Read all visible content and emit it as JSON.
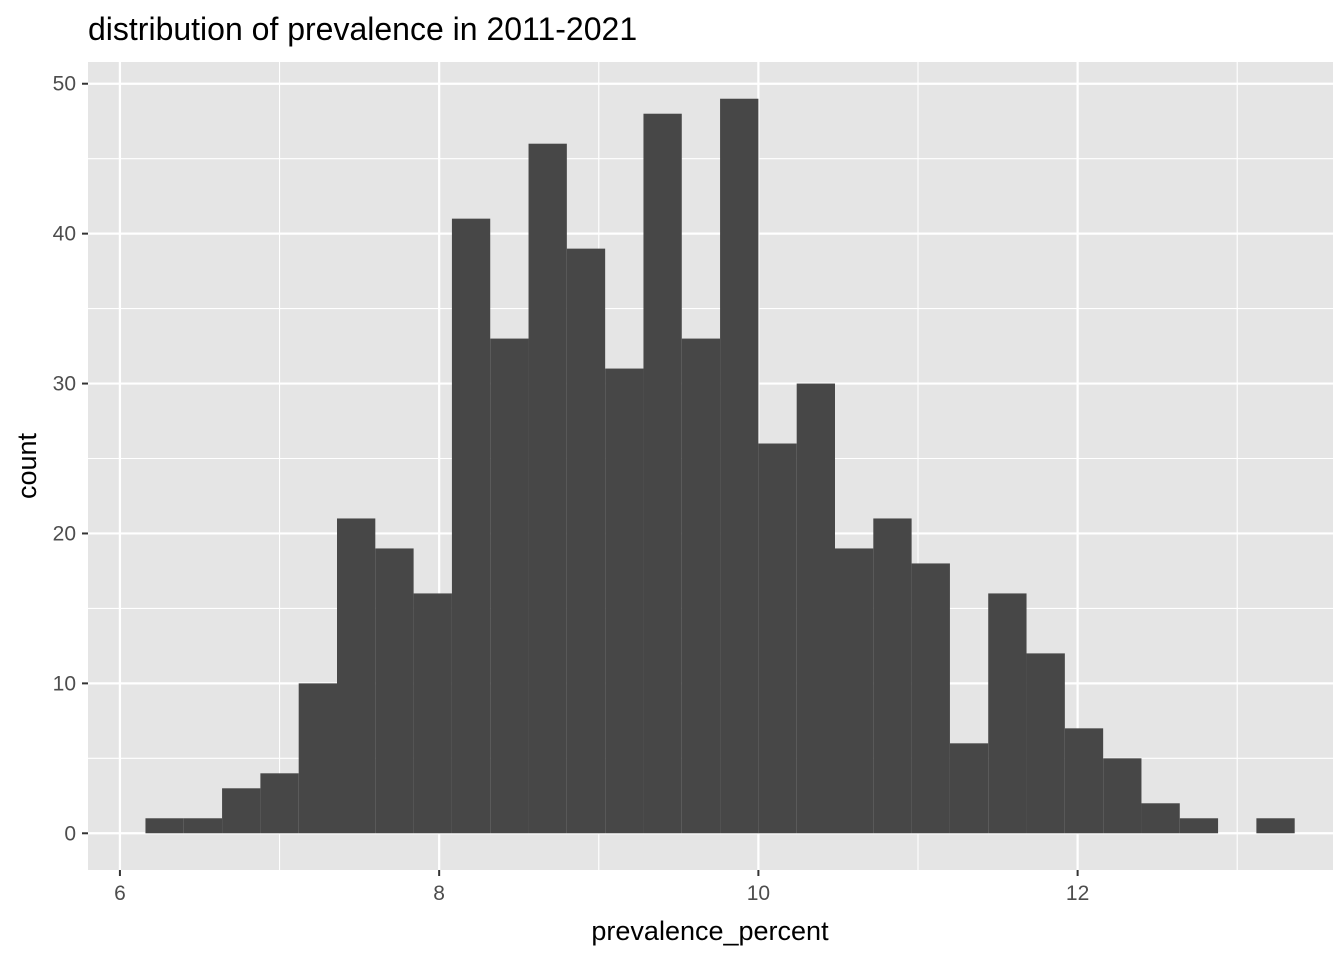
{
  "chart_data": {
    "type": "bar",
    "title": "distribution of prevalence in 2011-2021",
    "xlabel": "prevalence_percent",
    "ylabel": "count",
    "xlim": [
      5.8,
      13.6
    ],
    "ylim": [
      -2.45,
      51.45
    ],
    "x_ticks": [
      6,
      8,
      10,
      12
    ],
    "y_ticks": [
      0,
      10,
      20,
      30,
      40,
      50
    ],
    "grid": true,
    "panel_background": "#e5e5e5",
    "bar_color": "#474747",
    "grid_color": "#ffffff",
    "bin_width": 0.24,
    "bins": [
      {
        "x0": 6.16,
        "x1": 6.4,
        "count": 1
      },
      {
        "x0": 6.4,
        "x1": 6.64,
        "count": 1
      },
      {
        "x0": 6.64,
        "x1": 6.88,
        "count": 3
      },
      {
        "x0": 6.88,
        "x1": 7.12,
        "count": 4
      },
      {
        "x0": 7.12,
        "x1": 7.36,
        "count": 10
      },
      {
        "x0": 7.36,
        "x1": 7.6,
        "count": 21
      },
      {
        "x0": 7.6,
        "x1": 7.84,
        "count": 19
      },
      {
        "x0": 7.84,
        "x1": 8.08,
        "count": 16
      },
      {
        "x0": 8.08,
        "x1": 8.32,
        "count": 41
      },
      {
        "x0": 8.32,
        "x1": 8.56,
        "count": 33
      },
      {
        "x0": 8.56,
        "x1": 8.8,
        "count": 46
      },
      {
        "x0": 8.8,
        "x1": 9.04,
        "count": 39
      },
      {
        "x0": 9.04,
        "x1": 9.28,
        "count": 31
      },
      {
        "x0": 9.28,
        "x1": 9.52,
        "count": 48
      },
      {
        "x0": 9.52,
        "x1": 9.76,
        "count": 33
      },
      {
        "x0": 9.76,
        "x1": 10.0,
        "count": 49
      },
      {
        "x0": 10.0,
        "x1": 10.24,
        "count": 26
      },
      {
        "x0": 10.24,
        "x1": 10.48,
        "count": 30
      },
      {
        "x0": 10.48,
        "x1": 10.72,
        "count": 19
      },
      {
        "x0": 10.72,
        "x1": 10.96,
        "count": 21
      },
      {
        "x0": 10.96,
        "x1": 11.2,
        "count": 18
      },
      {
        "x0": 11.2,
        "x1": 11.44,
        "count": 6
      },
      {
        "x0": 11.44,
        "x1": 11.68,
        "count": 16
      },
      {
        "x0": 11.68,
        "x1": 11.92,
        "count": 12
      },
      {
        "x0": 11.92,
        "x1": 12.16,
        "count": 7
      },
      {
        "x0": 12.16,
        "x1": 12.4,
        "count": 5
      },
      {
        "x0": 12.4,
        "x1": 12.64,
        "count": 2
      },
      {
        "x0": 12.64,
        "x1": 12.88,
        "count": 1
      },
      {
        "x0": 12.88,
        "x1": 13.12,
        "count": 0
      },
      {
        "x0": 13.12,
        "x1": 13.36,
        "count": 1
      }
    ]
  }
}
